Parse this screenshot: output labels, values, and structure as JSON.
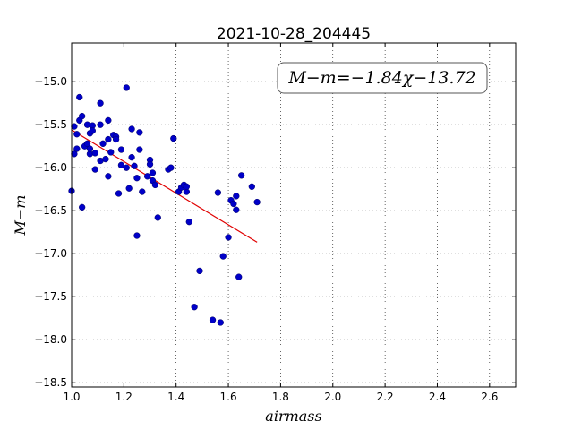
{
  "chart_data": {
    "type": "scatter",
    "title": "2021-10-28_204445",
    "xlabel": "airmass",
    "ylabel": "M−m",
    "annotation": "M−m=−1.84χ−13.72",
    "xlim": [
      1.0,
      2.7
    ],
    "ylim": [
      -18.55,
      -14.55
    ],
    "x_ticks": [
      1.0,
      1.2,
      1.4,
      1.6,
      1.8,
      2.0,
      2.2,
      2.4,
      2.6
    ],
    "x_tick_labels": [
      "1.0",
      "1.2",
      "1.4",
      "1.6",
      "1.8",
      "2.0",
      "2.2",
      "2.4",
      "2.6"
    ],
    "y_ticks": [
      -15.0,
      -15.5,
      -16.0,
      -16.5,
      -17.0,
      -17.5,
      -18.0,
      -18.5
    ],
    "y_tick_labels": [
      "−15.0",
      "−15.5",
      "−16.0",
      "−16.5",
      "−17.0",
      "−17.5",
      "−18.0",
      "−18.5"
    ],
    "grid": true,
    "colors": {
      "points": "#0000c8",
      "fit": "#e00000"
    },
    "fit": {
      "slope": -1.84,
      "intercept": -13.72,
      "x_range": [
        1.0,
        1.71
      ]
    },
    "points": [
      {
        "x": 1.0,
        "y": -16.27
      },
      {
        "x": 1.01,
        "y": -15.84
      },
      {
        "x": 1.01,
        "y": -15.52
      },
      {
        "x": 1.02,
        "y": -15.78
      },
      {
        "x": 1.02,
        "y": -15.61
      },
      {
        "x": 1.03,
        "y": -15.45
      },
      {
        "x": 1.03,
        "y": -15.18
      },
      {
        "x": 1.04,
        "y": -15.4
      },
      {
        "x": 1.04,
        "y": -16.46
      },
      {
        "x": 1.05,
        "y": -15.75
      },
      {
        "x": 1.06,
        "y": -15.5
      },
      {
        "x": 1.06,
        "y": -15.72
      },
      {
        "x": 1.07,
        "y": -15.84
      },
      {
        "x": 1.07,
        "y": -15.6
      },
      {
        "x": 1.07,
        "y": -15.78
      },
      {
        "x": 1.08,
        "y": -15.51
      },
      {
        "x": 1.08,
        "y": -15.57
      },
      {
        "x": 1.09,
        "y": -15.83
      },
      {
        "x": 1.09,
        "y": -16.02
      },
      {
        "x": 1.11,
        "y": -15.25
      },
      {
        "x": 1.11,
        "y": -15.92
      },
      {
        "x": 1.11,
        "y": -15.5
      },
      {
        "x": 1.12,
        "y": -15.72
      },
      {
        "x": 1.13,
        "y": -15.9
      },
      {
        "x": 1.14,
        "y": -15.45
      },
      {
        "x": 1.14,
        "y": -16.1
      },
      {
        "x": 1.14,
        "y": -15.67
      },
      {
        "x": 1.15,
        "y": -15.82
      },
      {
        "x": 1.16,
        "y": -15.62
      },
      {
        "x": 1.17,
        "y": -15.64
      },
      {
        "x": 1.17,
        "y": -15.67
      },
      {
        "x": 1.18,
        "y": -16.3
      },
      {
        "x": 1.19,
        "y": -15.79
      },
      {
        "x": 1.19,
        "y": -15.97
      },
      {
        "x": 1.21,
        "y": -15.07
      },
      {
        "x": 1.21,
        "y": -16.0
      },
      {
        "x": 1.22,
        "y": -16.24
      },
      {
        "x": 1.23,
        "y": -15.55
      },
      {
        "x": 1.23,
        "y": -15.88
      },
      {
        "x": 1.24,
        "y": -15.98
      },
      {
        "x": 1.25,
        "y": -16.79
      },
      {
        "x": 1.25,
        "y": -16.12
      },
      {
        "x": 1.26,
        "y": -15.59
      },
      {
        "x": 1.26,
        "y": -15.79
      },
      {
        "x": 1.27,
        "y": -16.28
      },
      {
        "x": 1.29,
        "y": -16.1
      },
      {
        "x": 1.3,
        "y": -15.91
      },
      {
        "x": 1.3,
        "y": -15.96
      },
      {
        "x": 1.31,
        "y": -16.06
      },
      {
        "x": 1.31,
        "y": -16.15
      },
      {
        "x": 1.32,
        "y": -16.2
      },
      {
        "x": 1.33,
        "y": -16.58
      },
      {
        "x": 1.37,
        "y": -16.02
      },
      {
        "x": 1.38,
        "y": -16.0
      },
      {
        "x": 1.39,
        "y": -15.66
      },
      {
        "x": 1.41,
        "y": -16.28
      },
      {
        "x": 1.42,
        "y": -16.23
      },
      {
        "x": 1.43,
        "y": -16.2
      },
      {
        "x": 1.44,
        "y": -16.28
      },
      {
        "x": 1.44,
        "y": -16.22
      },
      {
        "x": 1.45,
        "y": -16.63
      },
      {
        "x": 1.47,
        "y": -17.62
      },
      {
        "x": 1.49,
        "y": -17.2
      },
      {
        "x": 1.54,
        "y": -17.77
      },
      {
        "x": 1.56,
        "y": -16.29
      },
      {
        "x": 1.57,
        "y": -17.8
      },
      {
        "x": 1.58,
        "y": -17.03
      },
      {
        "x": 1.6,
        "y": -16.81
      },
      {
        "x": 1.61,
        "y": -16.38
      },
      {
        "x": 1.62,
        "y": -16.42
      },
      {
        "x": 1.63,
        "y": -16.49
      },
      {
        "x": 1.63,
        "y": -16.33
      },
      {
        "x": 1.64,
        "y": -17.27
      },
      {
        "x": 1.65,
        "y": -16.09
      },
      {
        "x": 1.69,
        "y": -16.22
      },
      {
        "x": 1.71,
        "y": -16.4
      }
    ]
  }
}
